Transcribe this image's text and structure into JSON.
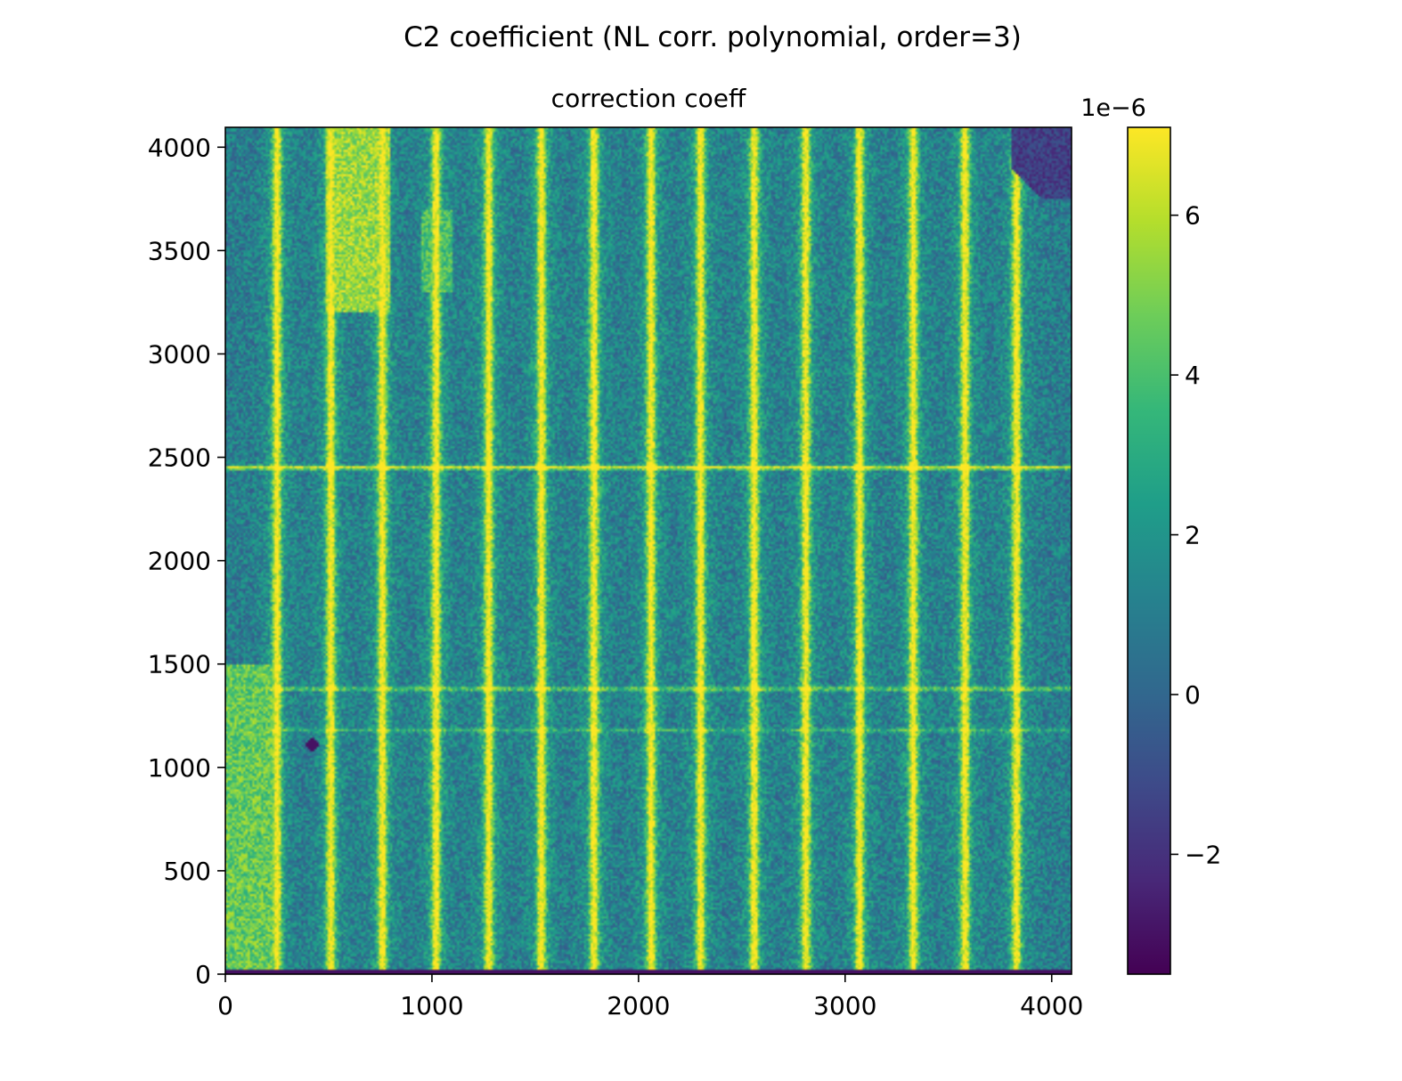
{
  "chart_data": {
    "type": "heatmap",
    "suptitle": "C2 coefficient (NL corr. polynomial, order=3)",
    "title": "correction coeff",
    "xlabel": "",
    "ylabel": "",
    "xlim": [
      0,
      4096
    ],
    "ylim": [
      0,
      4096
    ],
    "x_ticks": [
      0,
      1000,
      2000,
      3000,
      4000
    ],
    "y_ticks": [
      0,
      500,
      1000,
      1500,
      2000,
      2500,
      3000,
      3500,
      4000
    ],
    "x_tick_labels": [
      "0",
      "1000",
      "2000",
      "3000",
      "4000"
    ],
    "y_tick_labels": [
      "0",
      "500",
      "1000",
      "1500",
      "2000",
      "2500",
      "3000",
      "3500",
      "4000"
    ],
    "colormap": "viridis",
    "colorbar": {
      "offset_label": "1e−6",
      "vmin": -3.5,
      "vmax": 7.1,
      "ticks": [
        -2,
        0,
        2,
        4,
        6
      ],
      "tick_labels": [
        "−2",
        "0",
        "2",
        "4",
        "6"
      ]
    },
    "background_level": 1.0,
    "column_stripes": {
      "x_positions": [
        250,
        510,
        760,
        1020,
        1275,
        1530,
        1785,
        2060,
        2300,
        2560,
        2810,
        3070,
        3330,
        3580,
        3830
      ],
      "level": 6.5
    },
    "row_stripes": [
      {
        "y": 2450,
        "level": 6.5
      },
      {
        "y": 1380,
        "level": 4.5
      },
      {
        "y": 1180,
        "level": 3.0
      }
    ],
    "bottom_edge_level": -3.0,
    "high_regions": [
      {
        "x_range": [
          480,
          800
        ],
        "y_range": [
          3200,
          4096
        ],
        "level": 7.0
      },
      {
        "x_range": [
          0,
          250
        ],
        "y_range": [
          0,
          1500
        ],
        "level": 6.0
      },
      {
        "x_range": [
          950,
          1100
        ],
        "y_range": [
          3300,
          3700
        ],
        "level": 5.5
      }
    ],
    "low_regions": [
      {
        "x_range": [
          3800,
          4096
        ],
        "y_range": [
          3750,
          4096
        ],
        "level": -2.5
      }
    ],
    "spots": [
      {
        "x": 420,
        "y": 1110,
        "level": -3.0
      }
    ]
  }
}
